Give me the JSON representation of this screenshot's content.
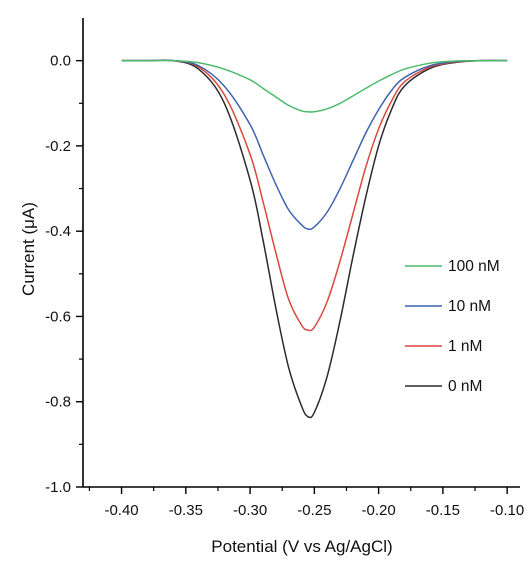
{
  "chart_data": {
    "type": "line",
    "title": "",
    "xlabel": "Potential (V vs Ag/AgCl)",
    "ylabel": "Current (μA)",
    "xlim": [
      -0.43,
      -0.09
    ],
    "ylim": [
      -1.0,
      0.1
    ],
    "x_ticks": [
      -0.4,
      -0.35,
      -0.3,
      -0.25,
      -0.2,
      -0.15,
      -0.1
    ],
    "x_tick_labels": [
      "-0.40",
      "-0.35",
      "-0.30",
      "-0.25",
      "-0.20",
      "-0.15",
      "-0.10"
    ],
    "y_ticks": [
      0.0,
      -0.2,
      -0.4,
      -0.6,
      -0.8,
      -1.0
    ],
    "y_tick_labels": [
      "0.0",
      "-0.2",
      "-0.4",
      "-0.6",
      "-0.8",
      "-1.0"
    ],
    "grid": false,
    "legend_position": "right",
    "x": [
      -0.4,
      -0.38,
      -0.36,
      -0.34,
      -0.32,
      -0.3,
      -0.29,
      -0.28,
      -0.27,
      -0.26,
      -0.255,
      -0.25,
      -0.24,
      -0.23,
      -0.22,
      -0.21,
      -0.2,
      -0.19,
      -0.18,
      -0.16,
      -0.14,
      -0.12,
      -0.1
    ],
    "series": [
      {
        "name": "100 nM",
        "color": "#4cbb6a",
        "values": [
          0.0,
          0.0,
          0.0,
          -0.005,
          -0.02,
          -0.045,
          -0.065,
          -0.085,
          -0.105,
          -0.118,
          -0.12,
          -0.12,
          -0.113,
          -0.1,
          -0.083,
          -0.065,
          -0.048,
          -0.033,
          -0.02,
          -0.006,
          -0.001,
          0.0,
          0.0
        ]
      },
      {
        "name": "10 nM",
        "color": "#3f63ad",
        "values": [
          0.0,
          0.0,
          0.0,
          -0.012,
          -0.06,
          -0.15,
          -0.22,
          -0.29,
          -0.35,
          -0.385,
          -0.395,
          -0.39,
          -0.355,
          -0.3,
          -0.235,
          -0.17,
          -0.115,
          -0.07,
          -0.04,
          -0.012,
          -0.002,
          0.0,
          0.0
        ]
      },
      {
        "name": "1 nM",
        "color": "#d9493f",
        "values": [
          0.0,
          0.0,
          0.0,
          -0.015,
          -0.08,
          -0.22,
          -0.33,
          -0.45,
          -0.56,
          -0.62,
          -0.632,
          -0.625,
          -0.565,
          -0.47,
          -0.36,
          -0.25,
          -0.16,
          -0.095,
          -0.05,
          -0.015,
          -0.003,
          0.0,
          0.0
        ]
      },
      {
        "name": "0 nM",
        "color": "#2b2b2b",
        "values": [
          0.0,
          0.0,
          0.0,
          -0.02,
          -0.1,
          -0.28,
          -0.42,
          -0.58,
          -0.72,
          -0.81,
          -0.835,
          -0.825,
          -0.74,
          -0.61,
          -0.46,
          -0.32,
          -0.2,
          -0.115,
          -0.06,
          -0.018,
          -0.004,
          0.0,
          0.0
        ]
      }
    ]
  }
}
